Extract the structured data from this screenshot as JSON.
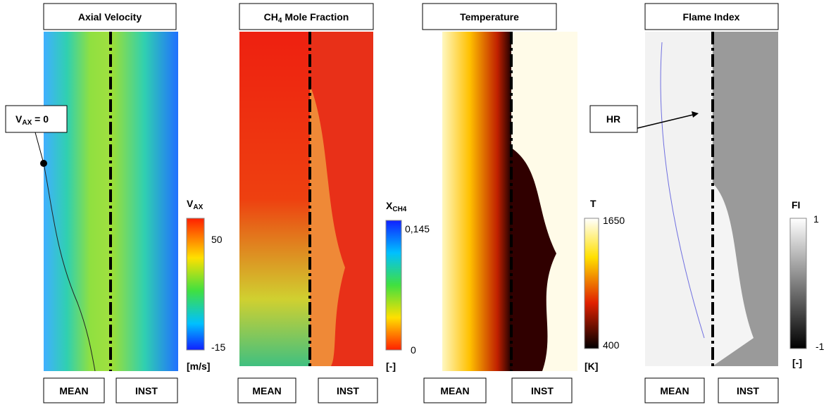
{
  "panels": [
    {
      "title": "Axial Velocity",
      "legend": {
        "symbol": "V",
        "sub": "AX",
        "max": "50",
        "min": "-15",
        "unit": "[m/s]"
      },
      "left": "MEAN",
      "right": "INST"
    },
    {
      "title": {
        "base": "CH",
        "sub": "4",
        "rest": " Mole Fraction"
      },
      "legend": {
        "symbol": "X",
        "sub": "CH4",
        "max": "0,145",
        "min": "0",
        "unit": "[-]"
      },
      "left": "MEAN",
      "right": "INST"
    },
    {
      "title": "Temperature",
      "legend": {
        "symbol": "T",
        "max": "1650",
        "min": "400",
        "unit": "[K]"
      },
      "left": "MEAN",
      "right": "INST"
    },
    {
      "title": "Flame Index",
      "legend": {
        "symbol": "FI",
        "max": "1",
        "min": "-1",
        "unit": "[-]"
      },
      "left": "MEAN",
      "right": "INST"
    }
  ],
  "annotations": {
    "vax_zero": {
      "base": "V",
      "sub": "AX",
      "rest": " = 0"
    },
    "hr": "HR"
  }
}
